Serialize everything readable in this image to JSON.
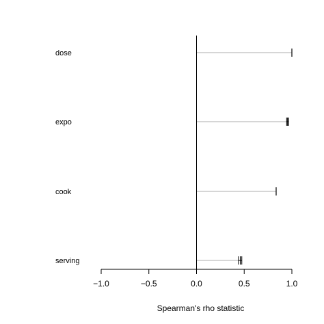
{
  "chart_data": {
    "type": "forest",
    "xlabel": "Spearman's rho statistic",
    "xlim": [
      -1.0,
      1.0
    ],
    "x_ticks": [
      -1.0,
      -0.5,
      0.0,
      0.5,
      1.0
    ],
    "x_tick_labels": [
      "−1.0",
      "−0.5",
      "0.0",
      "0.5",
      "1.0"
    ],
    "reference_line": 0.0,
    "categories": [
      "dose",
      "expo",
      "cook",
      "serving"
    ],
    "estimates": [
      {
        "name": "dose",
        "value": 1.0,
        "ci": [
          1.0,
          1.0
        ]
      },
      {
        "name": "expo",
        "value": 0.955,
        "ci": [
          0.945,
          0.965
        ]
      },
      {
        "name": "cook",
        "value": 0.835,
        "ci": [
          0.835,
          0.835
        ]
      },
      {
        "name": "serving",
        "value": 0.46,
        "ci": [
          0.44,
          0.475
        ]
      }
    ],
    "colors": {
      "segment": "#bebebe",
      "marker": "#000000",
      "axis": "#000000"
    }
  }
}
